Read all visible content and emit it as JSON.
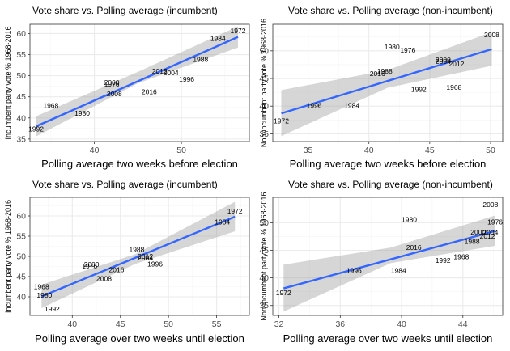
{
  "chart_data": [
    {
      "type": "scatter",
      "title": "Vote share vs. Polling average (incumbent)",
      "xlabel": "Polling average two weeks before election",
      "ylabel": "Incumbent party vote % 1968-2016",
      "xlim": [
        32.6,
        57.8
      ],
      "ylim": [
        34.4,
        62.2
      ],
      "xticks": [
        40,
        50
      ],
      "yticks": [
        35,
        40,
        45,
        50,
        55,
        60
      ],
      "grid": true,
      "points": [
        {
          "label": "1972",
          "x": 56.5,
          "y": 60.7
        },
        {
          "label": "1984",
          "x": 54.2,
          "y": 58.8
        },
        {
          "label": "1988",
          "x": 52.2,
          "y": 53.9
        },
        {
          "label": "2012",
          "x": 47.5,
          "y": 51.1
        },
        {
          "label": "2004",
          "x": 48.8,
          "y": 50.7
        },
        {
          "label": "1996",
          "x": 50.6,
          "y": 49.2
        },
        {
          "label": "2000",
          "x": 42.0,
          "y": 48.4
        },
        {
          "label": "1976",
          "x": 42.0,
          "y": 48.0
        },
        {
          "label": "2016",
          "x": 46.3,
          "y": 46.2
        },
        {
          "label": "2008",
          "x": 42.3,
          "y": 45.7
        },
        {
          "label": "1968",
          "x": 35.0,
          "y": 42.9
        },
        {
          "label": "1980",
          "x": 38.6,
          "y": 41.1
        },
        {
          "label": "1992",
          "x": 33.3,
          "y": 37.4
        }
      ],
      "fit": {
        "x": [
          33.3,
          56.5
        ],
        "y": [
          38.0,
          59.2
        ]
      },
      "band": {
        "x": [
          33.3,
          45.0,
          56.5
        ],
        "lower": [
          35.6,
          48.2,
          56.7
        ],
        "upper": [
          40.4,
          50.9,
          61.7
        ]
      }
    },
    {
      "type": "scatter",
      "title": "Vote share vs. Polling average (non-incumbent)",
      "xlabel": "Polling average two weeks before election",
      "ylabel": "Non-incumbent party vote % 1968-2016",
      "xlim": [
        32.1,
        51.0
      ],
      "ylim": [
        33.6,
        54.8
      ],
      "xticks": [
        35,
        40,
        45,
        50
      ],
      "yticks": [
        35,
        40,
        45,
        50
      ],
      "grid": true,
      "points": [
        {
          "label": "2008",
          "x": 50.1,
          "y": 52.9
        },
        {
          "label": "1980",
          "x": 41.9,
          "y": 50.7
        },
        {
          "label": "1976",
          "x": 43.2,
          "y": 50.1
        },
        {
          "label": "2000",
          "x": 46.1,
          "y": 48.4
        },
        {
          "label": "2004",
          "x": 46.1,
          "y": 48.1
        },
        {
          "label": "2012",
          "x": 47.2,
          "y": 47.6
        },
        {
          "label": "1988",
          "x": 41.3,
          "y": 46.3
        },
        {
          "label": "2016",
          "x": 40.7,
          "y": 45.9
        },
        {
          "label": "1992",
          "x": 44.1,
          "y": 43.0
        },
        {
          "label": "1968",
          "x": 47.0,
          "y": 43.4
        },
        {
          "label": "1996",
          "x": 35.5,
          "y": 40.1
        },
        {
          "label": "1984",
          "x": 38.6,
          "y": 40.1
        },
        {
          "label": "1972",
          "x": 32.8,
          "y": 37.3
        }
      ],
      "fit": {
        "x": [
          32.8,
          50.1
        ],
        "y": [
          38.7,
          50.3
        ]
      },
      "band": {
        "x": [
          32.8,
          41.5,
          50.1
        ],
        "lower": [
          34.6,
          43.3,
          47.3
        ],
        "upper": [
          42.9,
          46.5,
          53.4
        ]
      }
    },
    {
      "type": "scatter",
      "title": "Vote share vs. Polling average (incumbent)",
      "xlabel": "Polling average over two weeks until election",
      "ylabel": "Incumbent party vote % 1968-2016",
      "xlim": [
        35.6,
        58.4
      ],
      "ylim": [
        35.4,
        64.6
      ],
      "xticks": [
        40,
        45,
        50,
        55
      ],
      "yticks": [
        40,
        45,
        50,
        55,
        60
      ],
      "grid": true,
      "points": [
        {
          "label": "1972",
          "x": 56.9,
          "y": 61.2
        },
        {
          "label": "1984",
          "x": 55.6,
          "y": 58.5
        },
        {
          "label": "1988",
          "x": 46.7,
          "y": 51.7
        },
        {
          "label": "2012",
          "x": 47.6,
          "y": 50.0
        },
        {
          "label": "2004",
          "x": 47.6,
          "y": 49.6
        },
        {
          "label": "1996",
          "x": 48.6,
          "y": 48.1
        },
        {
          "label": "2000",
          "x": 42.0,
          "y": 48.0
        },
        {
          "label": "1976",
          "x": 41.8,
          "y": 47.6
        },
        {
          "label": "2016",
          "x": 44.6,
          "y": 46.7
        },
        {
          "label": "2008",
          "x": 43.3,
          "y": 44.5
        },
        {
          "label": "1968",
          "x": 36.8,
          "y": 42.5
        },
        {
          "label": "1980",
          "x": 37.1,
          "y": 40.4
        },
        {
          "label": "1992",
          "x": 37.9,
          "y": 37.0
        }
      ],
      "fit": {
        "x": [
          36.8,
          56.9
        ],
        "y": [
          40.1,
          59.8
        ]
      },
      "band": {
        "x": [
          36.8,
          46.5,
          56.9
        ],
        "lower": [
          37.2,
          48.1,
          56.2
        ],
        "upper": [
          43.0,
          50.5,
          63.5
        ]
      }
    },
    {
      "type": "scatter",
      "title": "Vote share vs. Polling average (non-incumbent)",
      "xlabel": "Polling average over two weeks until election",
      "ylabel": "Non-incumbent party vote % 1968-2016",
      "xlim": [
        31.6,
        46.6
      ],
      "ylim": [
        33.2,
        54.6
      ],
      "xticks": [
        32,
        36,
        40,
        44
      ],
      "yticks": [
        35,
        40,
        45,
        50
      ],
      "grid": true,
      "points": [
        {
          "label": "2008",
          "x": 45.8,
          "y": 53.3
        },
        {
          "label": "1980",
          "x": 40.5,
          "y": 50.6
        },
        {
          "label": "1976",
          "x": 46.1,
          "y": 50.1
        },
        {
          "label": "2000",
          "x": 45.0,
          "y": 48.3
        },
        {
          "label": "2004",
          "x": 45.8,
          "y": 48.2
        },
        {
          "label": "2012",
          "x": 45.6,
          "y": 47.6
        },
        {
          "label": "1988",
          "x": 44.6,
          "y": 46.6
        },
        {
          "label": "2016",
          "x": 40.8,
          "y": 45.5
        },
        {
          "label": "1992",
          "x": 42.7,
          "y": 43.2
        },
        {
          "label": "1968",
          "x": 43.9,
          "y": 43.8
        },
        {
          "label": "1996",
          "x": 36.9,
          "y": 41.3
        },
        {
          "label": "1984",
          "x": 39.8,
          "y": 41.3
        },
        {
          "label": "1972",
          "x": 32.3,
          "y": 37.3
        }
      ],
      "fit": {
        "x": [
          32.3,
          46.1
        ],
        "y": [
          38.1,
          48.5
        ]
      },
      "band": {
        "x": [
          32.3,
          39.3,
          46.1
        ],
        "lower": [
          33.9,
          42.7,
          45.8
        ],
        "upper": [
          42.4,
          45.5,
          51.3
        ]
      }
    }
  ],
  "style": {
    "panel_background": "#ffffff",
    "panel_border": "#333333",
    "grid_major": "#ebebeb",
    "grid_minor": "#f5f5f5",
    "fit_line": "#3366ff",
    "band_fill": "#999999"
  }
}
